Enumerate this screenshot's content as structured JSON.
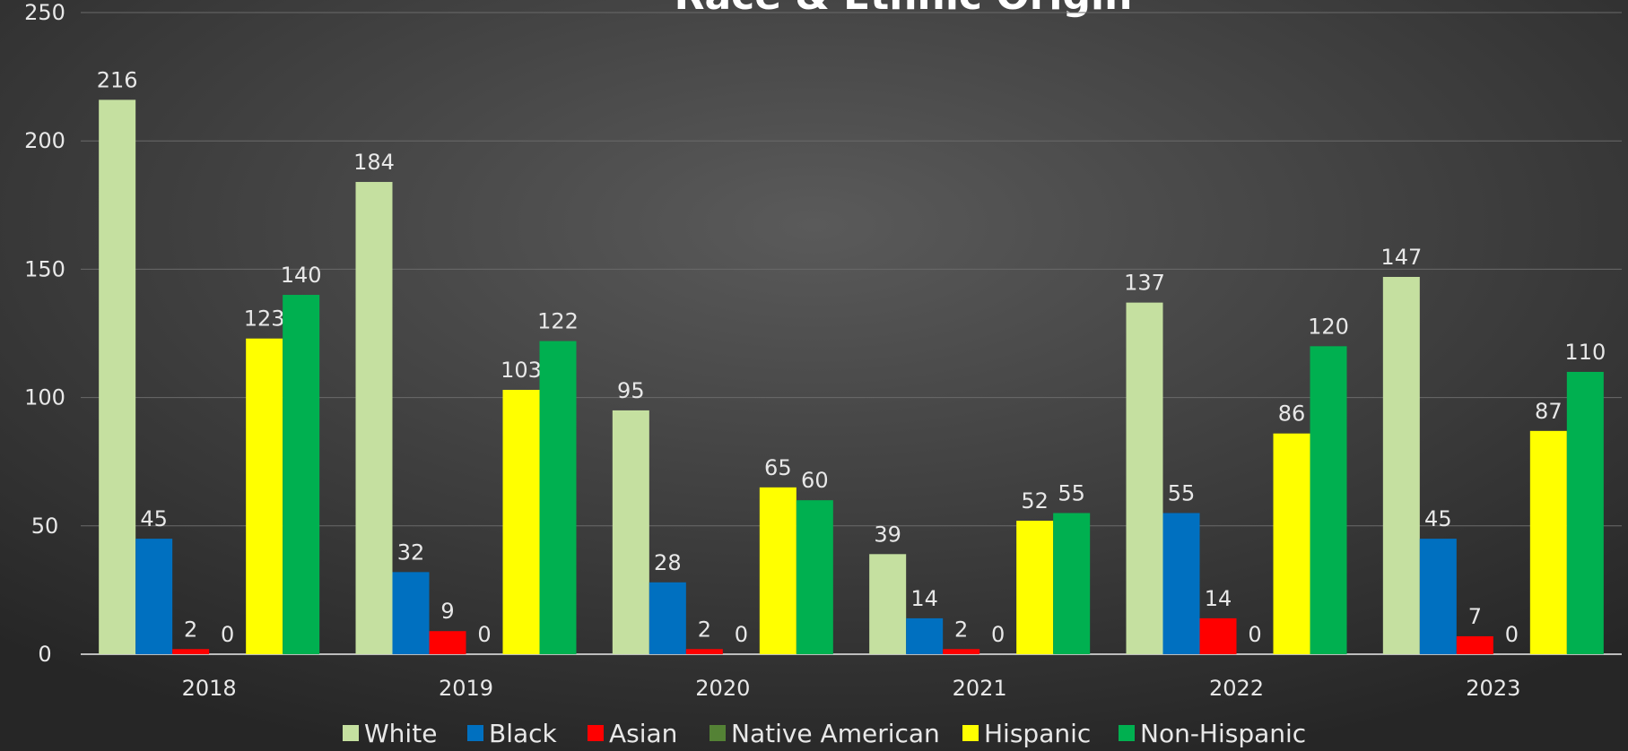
{
  "chart_data": {
    "type": "bar",
    "title": "Race & Ethnic Origin",
    "categories": [
      "2018",
      "2019",
      "2020",
      "2021",
      "2022",
      "2023"
    ],
    "series": [
      {
        "name": "White",
        "color": "#c5e0a0",
        "values": [
          216,
          184,
          95,
          39,
          137,
          147
        ]
      },
      {
        "name": "Black",
        "color": "#0070c0",
        "values": [
          45,
          32,
          28,
          14,
          55,
          45
        ]
      },
      {
        "name": "Asian",
        "color": "#ff0000",
        "values": [
          2,
          9,
          2,
          2,
          14,
          7
        ]
      },
      {
        "name": "Native American",
        "color": "#548235",
        "values": [
          0,
          0,
          0,
          0,
          0,
          0
        ]
      },
      {
        "name": "Hispanic",
        "color": "#ffff00",
        "values": [
          123,
          103,
          65,
          52,
          86,
          87
        ]
      },
      {
        "name": "Non-Hispanic",
        "color": "#00b050",
        "values": [
          140,
          122,
          60,
          55,
          120,
          110
        ]
      }
    ],
    "ylim": [
      0,
      250
    ],
    "yticks": [
      0,
      50,
      100,
      150,
      200,
      250
    ],
    "grid": true,
    "legend": "bottom"
  }
}
